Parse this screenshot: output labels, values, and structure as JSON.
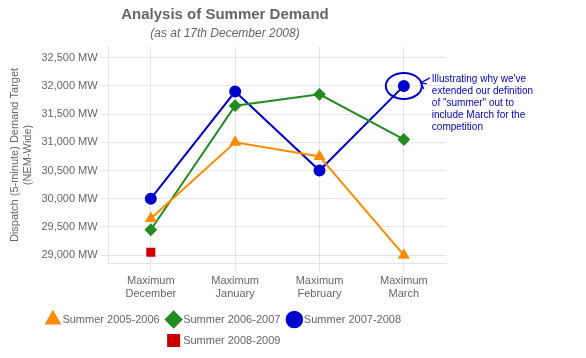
{
  "chart_data": {
    "type": "line",
    "title": "Analysis of Summer Demand",
    "subtitle": "(as at 17th December 2008)",
    "categories": [
      "Maximum\nDecember",
      "Maximum\nJanuary",
      "Maximum\nFebruary",
      "Maximum\nMarch"
    ],
    "ylabel": "Dispatch (5-minute) Demand Target\n(NEM-Wide)",
    "series": [
      {
        "name": "Summer 2005-2006",
        "color": "#FF8C00",
        "marker": "triangle",
        "values": [
          29650,
          31000,
          30750,
          29000
        ]
      },
      {
        "name": "Summer 2006-2007",
        "color": "#228B22",
        "marker": "diamond",
        "values": [
          29450,
          31650,
          31850,
          31050
        ]
      },
      {
        "name": "Summer 2007-2008",
        "color": "#0000CC",
        "marker": "circle",
        "values": [
          30000,
          31900,
          30500,
          32000
        ]
      },
      {
        "name": "Summer 2008-2009",
        "color": "#CC0000",
        "marker": "square",
        "values": [
          29050,
          null,
          null,
          null
        ]
      }
    ],
    "ylim": [
      28850,
      32700
    ],
    "yticks": [
      {
        "value": 29000,
        "label": "29,000 MW"
      },
      {
        "value": 29500,
        "label": "29,500 MW"
      },
      {
        "value": 30000,
        "label": "30,000 MW"
      },
      {
        "value": 30500,
        "label": "30,500 MW"
      },
      {
        "value": 31000,
        "label": "31,000 MW"
      },
      {
        "value": 31500,
        "label": "31,500 MW"
      },
      {
        "value": 32000,
        "label": "32,000 MW"
      },
      {
        "value": 32500,
        "label": "32,500 MW"
      }
    ],
    "grid": true,
    "legend": "bottom",
    "annotations": [
      {
        "text": "Illustrating why we've\nextended our definition\nof \"summer\" out to\ninclude March for the\ncompetition",
        "series": "Summer 2007-2008",
        "category": "Maximum\nMarch"
      }
    ]
  }
}
